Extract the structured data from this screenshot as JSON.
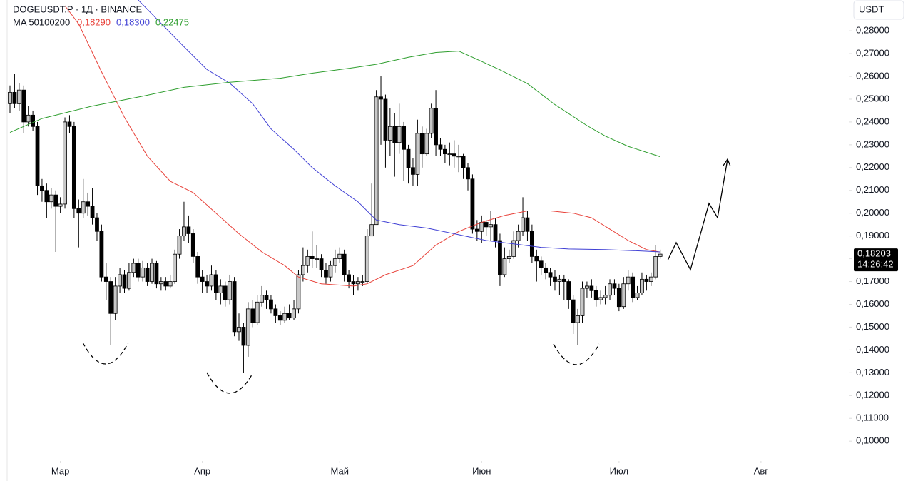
{
  "chart_data": {
    "type": "candlestick",
    "title": "DOGEUSDT.P · 1Д · BINANCE",
    "indicator_label": "MA 50100200",
    "currency": "USDT",
    "last_price_label": "0,18203",
    "countdown": "14:26:42",
    "up_color": "#c8c8c8",
    "down_color": "#000000",
    "ylim": [
      0.0916,
      0.2935
    ],
    "xlim": [
      -0.6,
      184
    ],
    "yticks": [
      {
        "value": 0.28,
        "label": "0,28000"
      },
      {
        "value": 0.27,
        "label": "0,27000"
      },
      {
        "value": 0.26,
        "label": "0,26000"
      },
      {
        "value": 0.25,
        "label": "0,25000"
      },
      {
        "value": 0.24,
        "label": "0,24000"
      },
      {
        "value": 0.23,
        "label": "0,23000"
      },
      {
        "value": 0.22,
        "label": "0,22000"
      },
      {
        "value": 0.21,
        "label": "0,21000"
      },
      {
        "value": 0.2,
        "label": "0,20000"
      },
      {
        "value": 0.19,
        "label": "0,19000"
      },
      {
        "value": 0.18,
        "label": "0,18000"
      },
      {
        "value": 0.17,
        "label": "0,17000"
      },
      {
        "value": 0.16,
        "label": "0,16000"
      },
      {
        "value": 0.15,
        "label": "0,15000"
      },
      {
        "value": 0.14,
        "label": "0,14000"
      },
      {
        "value": 0.13,
        "label": "0,13000"
      },
      {
        "value": 0.12,
        "label": "0,12000"
      },
      {
        "value": 0.11,
        "label": "0,11000"
      },
      {
        "value": 0.1,
        "label": "0,10000"
      }
    ],
    "xticks": [
      {
        "value": 11,
        "label": "Мар"
      },
      {
        "value": 42,
        "label": "Апр"
      },
      {
        "value": 72,
        "label": "Май"
      },
      {
        "value": 103,
        "label": "Июн"
      },
      {
        "value": 133,
        "label": "Июл"
      },
      {
        "value": 164,
        "label": "Авг"
      }
    ],
    "open": [
      0.248,
      0.253,
      0.248,
      0.254,
      0.24,
      0.243,
      0.238,
      0.212,
      0.21,
      0.205,
      0.208,
      0.203,
      0.204,
      0.24,
      0.238,
      0.202,
      0.2,
      0.205,
      0.203,
      0.198,
      0.192,
      0.172,
      0.17,
      0.156,
      0.168,
      0.173,
      0.167,
      0.174,
      0.178,
      0.172,
      0.176,
      0.17,
      0.178,
      0.169,
      0.17,
      0.168,
      0.17,
      0.182,
      0.19,
      0.194,
      0.191,
      0.181,
      0.172,
      0.17,
      0.168,
      0.173,
      0.165,
      0.168,
      0.162,
      0.17,
      0.148,
      0.15,
      0.142,
      0.158,
      0.152,
      0.161,
      0.164,
      0.162,
      0.158,
      0.155,
      0.153,
      0.156,
      0.154,
      0.158,
      0.173,
      0.177,
      0.181,
      0.18,
      0.18,
      0.175,
      0.172,
      0.177,
      0.18,
      0.182,
      0.173,
      0.17,
      0.169,
      0.17,
      0.17,
      0.19,
      0.195,
      0.251,
      0.25,
      0.232,
      0.238,
      0.231,
      0.238,
      0.228,
      0.22,
      0.217,
      0.235,
      0.226,
      0.235,
      0.246,
      0.23,
      0.228,
      0.226,
      0.226,
      0.225,
      0.225,
      0.22,
      0.215,
      0.193,
      0.192,
      0.196,
      0.194,
      0.195,
      0.188,
      0.173,
      0.18,
      0.181,
      0.188,
      0.192,
      0.198,
      0.192,
      0.181,
      0.179,
      0.176,
      0.174,
      0.172,
      0.17,
      0.171,
      0.17,
      0.162,
      0.152,
      0.155,
      0.167,
      0.168,
      0.166,
      0.162,
      0.163,
      0.164,
      0.169,
      0.167,
      0.159,
      0.169,
      0.172,
      0.163,
      0.165,
      0.171,
      0.17,
      0.172,
      0.181
    ],
    "high": [
      0.256,
      0.261,
      0.257,
      0.256,
      0.247,
      0.245,
      0.24,
      0.215,
      0.213,
      0.211,
      0.21,
      0.207,
      0.242,
      0.243,
      0.24,
      0.206,
      0.215,
      0.209,
      0.211,
      0.2,
      0.195,
      0.178,
      0.172,
      0.172,
      0.176,
      0.175,
      0.178,
      0.18,
      0.18,
      0.179,
      0.178,
      0.18,
      0.179,
      0.172,
      0.172,
      0.173,
      0.184,
      0.193,
      0.205,
      0.199,
      0.193,
      0.183,
      0.175,
      0.173,
      0.177,
      0.175,
      0.171,
      0.17,
      0.173,
      0.172,
      0.156,
      0.152,
      0.161,
      0.162,
      0.164,
      0.168,
      0.166,
      0.164,
      0.16,
      0.157,
      0.159,
      0.16,
      0.162,
      0.175,
      0.185,
      0.184,
      0.192,
      0.186,
      0.182,
      0.178,
      0.179,
      0.184,
      0.185,
      0.184,
      0.175,
      0.173,
      0.172,
      0.173,
      0.193,
      0.213,
      0.254,
      0.26,
      0.252,
      0.246,
      0.244,
      0.248,
      0.24,
      0.23,
      0.224,
      0.241,
      0.238,
      0.237,
      0.248,
      0.254,
      0.233,
      0.23,
      0.231,
      0.232,
      0.23,
      0.226,
      0.222,
      0.217,
      0.197,
      0.199,
      0.197,
      0.201,
      0.198,
      0.191,
      0.185,
      0.184,
      0.192,
      0.195,
      0.207,
      0.201,
      0.195,
      0.184,
      0.181,
      0.178,
      0.176,
      0.175,
      0.173,
      0.173,
      0.171,
      0.164,
      0.158,
      0.17,
      0.17,
      0.171,
      0.168,
      0.166,
      0.168,
      0.171,
      0.171,
      0.169,
      0.172,
      0.175,
      0.174,
      0.168,
      0.174,
      0.173,
      0.174,
      0.186,
      0.184
    ],
    "low": [
      0.244,
      0.246,
      0.245,
      0.235,
      0.238,
      0.236,
      0.208,
      0.205,
      0.198,
      0.202,
      0.183,
      0.2,
      0.202,
      0.235,
      0.198,
      0.185,
      0.198,
      0.199,
      0.195,
      0.188,
      0.17,
      0.162,
      0.142,
      0.153,
      0.165,
      0.165,
      0.166,
      0.172,
      0.17,
      0.17,
      0.168,
      0.169,
      0.167,
      0.166,
      0.166,
      0.167,
      0.169,
      0.18,
      0.188,
      0.187,
      0.178,
      0.169,
      0.165,
      0.165,
      0.166,
      0.162,
      0.16,
      0.159,
      0.16,
      0.146,
      0.144,
      0.13,
      0.137,
      0.15,
      0.151,
      0.159,
      0.158,
      0.156,
      0.152,
      0.151,
      0.152,
      0.153,
      0.153,
      0.156,
      0.17,
      0.174,
      0.176,
      0.176,
      0.172,
      0.169,
      0.17,
      0.174,
      0.178,
      0.17,
      0.167,
      0.164,
      0.166,
      0.168,
      0.169,
      0.19,
      0.195,
      0.23,
      0.22,
      0.225,
      0.216,
      0.226,
      0.214,
      0.213,
      0.212,
      0.212,
      0.22,
      0.225,
      0.233,
      0.225,
      0.225,
      0.222,
      0.221,
      0.22,
      0.218,
      0.215,
      0.21,
      0.191,
      0.188,
      0.187,
      0.19,
      0.188,
      0.185,
      0.168,
      0.172,
      0.178,
      0.18,
      0.185,
      0.19,
      0.188,
      0.178,
      0.17,
      0.173,
      0.171,
      0.168,
      0.166,
      0.164,
      0.162,
      0.158,
      0.147,
      0.142,
      0.152,
      0.163,
      0.163,
      0.159,
      0.16,
      0.16,
      0.162,
      0.164,
      0.157,
      0.158,
      0.166,
      0.161,
      0.162,
      0.164,
      0.166,
      0.168,
      0.171,
      0.18
    ],
    "close": [
      0.253,
      0.248,
      0.254,
      0.24,
      0.243,
      0.238,
      0.212,
      0.21,
      0.205,
      0.208,
      0.203,
      0.204,
      0.24,
      0.238,
      0.202,
      0.2,
      0.205,
      0.203,
      0.198,
      0.192,
      0.172,
      0.17,
      0.156,
      0.168,
      0.173,
      0.167,
      0.174,
      0.178,
      0.172,
      0.176,
      0.17,
      0.178,
      0.169,
      0.17,
      0.168,
      0.17,
      0.182,
      0.19,
      0.194,
      0.191,
      0.181,
      0.172,
      0.17,
      0.168,
      0.173,
      0.165,
      0.168,
      0.162,
      0.17,
      0.148,
      0.15,
      0.142,
      0.158,
      0.152,
      0.161,
      0.164,
      0.162,
      0.158,
      0.155,
      0.153,
      0.156,
      0.154,
      0.158,
      0.173,
      0.177,
      0.181,
      0.18,
      0.18,
      0.175,
      0.172,
      0.177,
      0.18,
      0.182,
      0.173,
      0.17,
      0.169,
      0.17,
      0.17,
      0.19,
      0.195,
      0.251,
      0.25,
      0.232,
      0.238,
      0.231,
      0.238,
      0.228,
      0.22,
      0.217,
      0.235,
      0.226,
      0.235,
      0.246,
      0.23,
      0.228,
      0.226,
      0.226,
      0.225,
      0.225,
      0.22,
      0.215,
      0.193,
      0.192,
      0.196,
      0.194,
      0.195,
      0.188,
      0.173,
      0.18,
      0.181,
      0.188,
      0.192,
      0.198,
      0.192,
      0.181,
      0.179,
      0.176,
      0.174,
      0.172,
      0.17,
      0.171,
      0.17,
      0.162,
      0.152,
      0.155,
      0.167,
      0.168,
      0.166,
      0.162,
      0.163,
      0.164,
      0.169,
      0.167,
      0.159,
      0.169,
      0.172,
      0.163,
      0.165,
      0.171,
      0.17,
      0.172,
      0.181,
      0.18203
    ],
    "series": [
      {
        "name": "MA 50",
        "legend_value": "0,18290",
        "color": "#e8423a",
        "x": [
          12,
          15,
          20,
          25,
          30,
          35,
          40,
          45,
          50,
          55,
          60,
          63,
          68,
          75,
          78,
          82,
          88,
          93,
          98,
          103,
          108,
          113,
          118,
          123,
          127,
          131,
          135,
          139,
          142
        ],
        "values": [
          0.291,
          0.283,
          0.262,
          0.242,
          0.225,
          0.214,
          0.209,
          0.2,
          0.191,
          0.183,
          0.177,
          0.172,
          0.169,
          0.168,
          0.169,
          0.173,
          0.177,
          0.186,
          0.192,
          0.196,
          0.199,
          0.201,
          0.201,
          0.2,
          0.198,
          0.193,
          0.188,
          0.184,
          0.1829
        ]
      },
      {
        "name": "MA 100",
        "legend_value": "0,18300",
        "color": "#3f3fd4",
        "x": [
          28,
          38,
          43,
          48,
          53,
          57,
          62,
          66,
          71,
          76,
          80,
          85,
          91,
          97,
          104,
          110,
          116,
          122,
          130,
          138,
          142
        ],
        "values": [
          0.2935,
          0.273,
          0.263,
          0.257,
          0.248,
          0.237,
          0.228,
          0.22,
          0.212,
          0.205,
          0.197,
          0.195,
          0.1935,
          0.191,
          0.188,
          0.1865,
          0.185,
          0.1843,
          0.184,
          0.1834,
          0.183
        ]
      },
      {
        "name": "MA 200",
        "legend_value": "0,22475",
        "color": "#2e9e2e",
        "x": [
          0,
          7,
          18,
          29,
          38,
          48,
          59,
          66,
          74,
          80,
          87,
          93,
          98,
          101,
          107,
          113,
          119,
          126,
          130,
          135,
          142
        ],
        "values": [
          0.2354,
          0.2415,
          0.247,
          0.2513,
          0.2552,
          0.2574,
          0.2592,
          0.2614,
          0.2635,
          0.2653,
          0.2684,
          0.2705,
          0.2711,
          0.2684,
          0.2629,
          0.2568,
          0.2476,
          0.2384,
          0.2338,
          0.2293,
          0.22475
        ]
      }
    ]
  }
}
